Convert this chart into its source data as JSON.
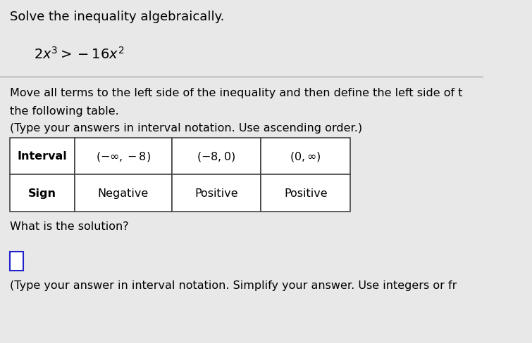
{
  "title_line1": "Solve the inequality algebraically.",
  "body_line1": "Move all terms to the left side of the inequality and then define the left side of t",
  "body_line2": "the following table.",
  "body_line3": "(Type your answers in interval notation. Use ascending order.)",
  "table_headers": [
    "Interval",
    "(−∞,−8)",
    "(−8,0)",
    "(0,∞)"
  ],
  "table_row2_label": "Sign",
  "table_row2_values": [
    "Negative",
    "Positive",
    "Positive"
  ],
  "question": "What is the solution?",
  "footer": "(Type your answer in interval notation. Simplify your answer. Use integers or fr",
  "bg_color": "#e8e8e8",
  "table_bg": "#ffffff",
  "text_color": "#000000",
  "font_size_title": 13,
  "font_size_body": 11.5,
  "font_size_table": 11.5,
  "font_size_equation": 14
}
